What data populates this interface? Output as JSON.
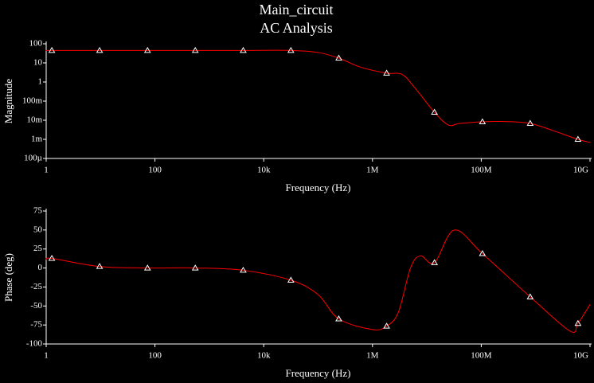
{
  "chart_data": [
    {
      "type": "line",
      "title": "Main_circuit",
      "subtitle": "AC Analysis",
      "xlabel": "Frequency (Hz)",
      "ylabel": "Magnitude",
      "xlog": true,
      "ylog": true,
      "xlim": [
        1,
        10000000000
      ],
      "xticks": [
        1,
        100,
        {
          "value": 10000,
          "label": "10k"
        },
        {
          "value": 1000000,
          "label": "1M"
        },
        {
          "value": 100000000,
          "label": "100M"
        },
        {
          "value": 10000000000,
          "label": "10G"
        }
      ],
      "ylim": [
        0.0001,
        100
      ],
      "yticks": [
        {
          "value": 0.0001,
          "label": "100µ"
        },
        {
          "value": 0.001,
          "label": "1m"
        },
        {
          "value": 0.01,
          "label": "10m"
        },
        {
          "value": 0.1,
          "label": "100m"
        },
        1,
        10,
        100
      ],
      "x": [
        1,
        1.27,
        9.6,
        73,
        551,
        4200,
        31600,
        100000,
        240000,
        600000,
        1820000,
        3500000,
        6000000,
        13800000,
        25000000,
        40000000,
        105000000,
        300000000,
        794000000,
        2000000000,
        6000000000,
        10000000000
      ],
      "series": [
        {
          "color": "#ff0000",
          "values": [
            45,
            45,
            45,
            45,
            45,
            45,
            45,
            35,
            17.8,
            6,
            2.9,
            2.5,
            0.5,
            0.026,
            0.0056,
            0.0068,
            0.0083,
            0.0085,
            0.0068,
            0.003,
            0.001,
            0.00069
          ]
        }
      ],
      "markers": {
        "color": "#ffffff",
        "x": [
          1.27,
          9.6,
          73,
          551,
          4200,
          31600,
          240000,
          1820000,
          13800000,
          105000000,
          794000000,
          6000000000
        ],
        "values": [
          45,
          45,
          45,
          45,
          45,
          45,
          17.8,
          2.9,
          0.026,
          0.0083,
          0.0068,
          0.001
        ]
      }
    },
    {
      "type": "line",
      "xlabel": "Frequency (Hz)",
      "ylabel": "Phase (deg)",
      "xlog": true,
      "ylog": false,
      "xlim": [
        1,
        10000000000
      ],
      "xticks": [
        1,
        100,
        {
          "value": 10000,
          "label": "10k"
        },
        {
          "value": 1000000,
          "label": "1M"
        },
        {
          "value": 100000000,
          "label": "100M"
        },
        {
          "value": 10000000000,
          "label": "10G"
        }
      ],
      "ylim": [
        -100,
        75
      ],
      "yticks": [
        -100,
        -75,
        -50,
        -25,
        0,
        25,
        50,
        75
      ],
      "x": [
        1,
        1.27,
        9.6,
        73,
        551,
        4200,
        31600,
        100000,
        240000,
        1000000,
        1820000,
        3000000,
        5000000,
        7600000,
        13800000,
        32000000,
        105000000,
        794000000,
        4300000000,
        6000000000,
        10000000000
      ],
      "series": [
        {
          "color": "#ff0000",
          "values": [
            11,
            12.6,
            2,
            0,
            0,
            -3,
            -16,
            -35,
            -67,
            -81,
            -76.5,
            -58,
            0,
            16,
            7,
            50,
            19,
            -38,
            -83,
            -73,
            -48
          ]
        }
      ],
      "markers": {
        "color": "#ffffff",
        "x": [
          1.27,
          9.6,
          73,
          551,
          4200,
          31600,
          240000,
          1820000,
          13800000,
          105000000,
          794000000,
          6000000000
        ],
        "values": [
          12.6,
          2,
          0,
          0,
          -3,
          -16,
          -67,
          -76.5,
          7,
          19,
          -38,
          -73
        ]
      }
    }
  ]
}
